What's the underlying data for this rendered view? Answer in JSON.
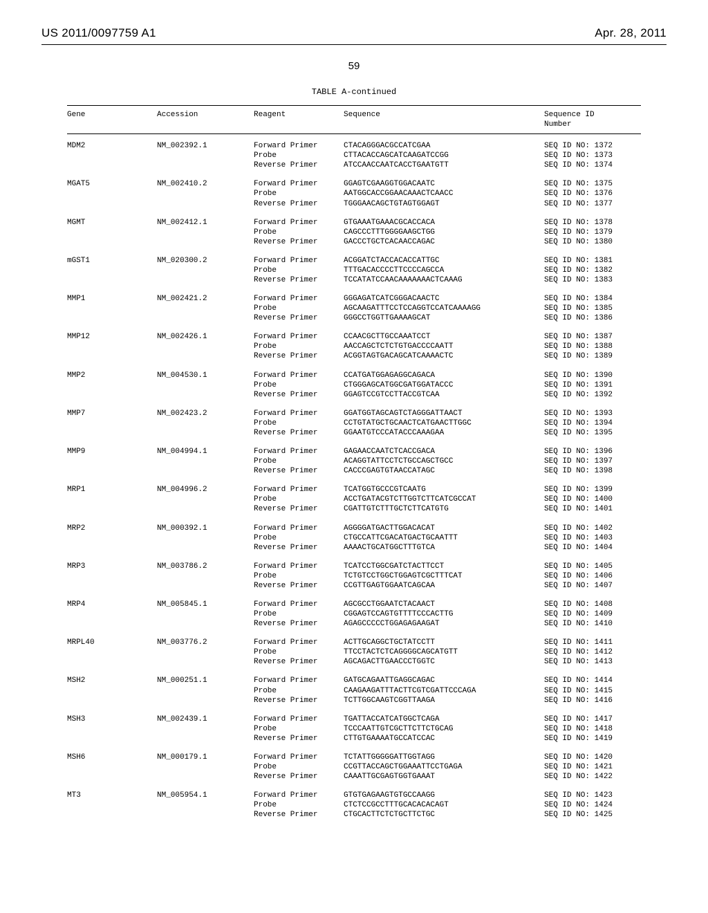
{
  "header": {
    "publication_number": "US 2011/0097759 A1",
    "publication_date": "Apr. 28, 2011"
  },
  "page_number": "59",
  "table_title": "TABLE A-continued",
  "columns": {
    "gene": "Gene",
    "accession": "Accession",
    "reagent": "Reagent",
    "sequence": "Sequence",
    "seq_id_label_1": "Sequence ID",
    "seq_id_label_2": "Number"
  },
  "reagent_labels": {
    "fwd": "Forward Primer",
    "probe": "Probe",
    "rev": "Reverse Primer"
  },
  "seq_id_prefix": "SEQ ID NO:",
  "genes": [
    {
      "gene": "MDM2",
      "accession": "NM_002392.1",
      "fwd_seq": "CTACAGGGACGCCATCGAA",
      "fwd_id": "1372",
      "probe_seq": "CTTACACCAGCATCAAGATCCGG",
      "probe_id": "1373",
      "rev_seq": "ATCCAACCAATCACCTGAATGTT",
      "rev_id": "1374"
    },
    {
      "gene": "MGAT5",
      "accession": "NM_002410.2",
      "fwd_seq": "GGAGTCGAAGGTGGACAATC",
      "fwd_id": "1375",
      "probe_seq": "AATGGCACCGGAACAAACTCAACC",
      "probe_id": "1376",
      "rev_seq": "TGGGAACAGCTGTAGTGGAGT",
      "rev_id": "1377"
    },
    {
      "gene": "MGMT",
      "accession": "NM_002412.1",
      "fwd_seq": "GTGAAATGAAACGCACCACA",
      "fwd_id": "1378",
      "probe_seq": "CAGCCCTTTGGGGAAGCTGG",
      "probe_id": "1379",
      "rev_seq": "GACCCTGCTCACAACCAGAC",
      "rev_id": "1380"
    },
    {
      "gene": "mGST1",
      "accession": "NM_020300.2",
      "fwd_seq": "ACGGATCTACCACACCATTGC",
      "fwd_id": "1381",
      "probe_seq": "TTTGACACCCCTTCCCCAGCCA",
      "probe_id": "1382",
      "rev_seq": "TCCATATCCAACAAAAAAACTCAAAG",
      "rev_id": "1383"
    },
    {
      "gene": "MMP1",
      "accession": "NM_002421.2",
      "fwd_seq": "GGGAGATCATCGGGACAACTC",
      "fwd_id": "1384",
      "probe_seq": "AGCAAGATTTCCTCCAGGTCCATCAAAAGG",
      "probe_id": "1385",
      "rev_seq": "GGGCCTGGTTGAAAAGCAT",
      "rev_id": "1386"
    },
    {
      "gene": "MMP12",
      "accession": "NM_002426.1",
      "fwd_seq": "CCAACGCTTGCCAAATCCT",
      "fwd_id": "1387",
      "probe_seq": "AACCAGCTCTCTGTGACCCCAATT",
      "probe_id": "1388",
      "rev_seq": "ACGGTAGTGACAGCATCAAAACTC",
      "rev_id": "1389"
    },
    {
      "gene": "MMP2",
      "accession": "NM_004530.1",
      "fwd_seq": "CCATGATGGAGAGGCAGACA",
      "fwd_id": "1390",
      "probe_seq": "CTGGGAGCATGGCGATGGATACCC",
      "probe_id": "1391",
      "rev_seq": "GGAGTCCGTCCTTACCGTCAA",
      "rev_id": "1392"
    },
    {
      "gene": "MMP7",
      "accession": "NM_002423.2",
      "fwd_seq": "GGATGGTAGCAGTCTAGGGATTAACT",
      "fwd_id": "1393",
      "probe_seq": "CCTGTATGCTGCAACTCATGAACTTGGC",
      "probe_id": "1394",
      "rev_seq": "GGAATGTCCCATACCCAAAGAA",
      "rev_id": "1395"
    },
    {
      "gene": "MMP9",
      "accession": "NM_004994.1",
      "fwd_seq": "GAGAACCAATCTCACCGACA",
      "fwd_id": "1396",
      "probe_seq": "ACAGGTATTCCTCTGCCAGCTGCC",
      "probe_id": "1397",
      "rev_seq": "CACCCGAGTGTAACCATAGC",
      "rev_id": "1398"
    },
    {
      "gene": "MRP1",
      "accession": "NM_004996.2",
      "fwd_seq": "TCATGGTGCCCGTCAATG",
      "fwd_id": "1399",
      "probe_seq": "ACCTGATACGTCTTGGTCTTCATCGCCAT",
      "probe_id": "1400",
      "rev_seq": "CGATTGTCTTTGCTCTTCATGTG",
      "rev_id": "1401"
    },
    {
      "gene": "MRP2",
      "accession": "NM_000392.1",
      "fwd_seq": "AGGGGATGACTTGGACACAT",
      "fwd_id": "1402",
      "probe_seq": "CTGCCATTCGACATGACTGCAATTT",
      "probe_id": "1403",
      "rev_seq": "AAAACTGCATGGCTTTGTCA",
      "rev_id": "1404"
    },
    {
      "gene": "MRP3",
      "accession": "NM_003786.2",
      "fwd_seq": "TCATCCTGGCGATCTACTTCCT",
      "fwd_id": "1405",
      "probe_seq": "TCTGTCCTGGCTGGAGTCGCTTTCAT",
      "probe_id": "1406",
      "rev_seq": "CCGTTGAGTGGAATCAGCAA",
      "rev_id": "1407"
    },
    {
      "gene": "MRP4",
      "accession": "NM_005845.1",
      "fwd_seq": "AGCGCCTGGAATCTACAACT",
      "fwd_id": "1408",
      "probe_seq": "CGGAGTCCAGTGTTTTCCCACTTG",
      "probe_id": "1409",
      "rev_seq": "AGAGCCCCCTGGAGAGAAGAT",
      "rev_id": "1410"
    },
    {
      "gene": "MRPL40",
      "accession": "NM_003776.2",
      "fwd_seq": "ACTTGCAGGCTGCTATCCTT",
      "fwd_id": "1411",
      "probe_seq": "TTCCTACTCTCAGGGGCAGCATGTT",
      "probe_id": "1412",
      "rev_seq": "AGCAGACTTGAACCCTGGTC",
      "rev_id": "1413"
    },
    {
      "gene": "MSH2",
      "accession": "NM_000251.1",
      "fwd_seq": "GATGCAGAATTGAGGCAGAC",
      "fwd_id": "1414",
      "probe_seq": "CAAGAAGATTTACTTCGTCGATTCCCAGA",
      "probe_id": "1415",
      "rev_seq": "TCTTGGCAAGTCGGTTAAGA",
      "rev_id": "1416"
    },
    {
      "gene": "MSH3",
      "accession": "NM_002439.1",
      "fwd_seq": "TGATTACCATCATGGCTCAGA",
      "fwd_id": "1417",
      "probe_seq": "TCCCAATTGTCGCTTCTTCTGCAG",
      "probe_id": "1418",
      "rev_seq": "CTTGTGAAAATGCCATCCAC",
      "rev_id": "1419"
    },
    {
      "gene": "MSH6",
      "accession": "NM_000179.1",
      "fwd_seq": "TCTATTGGGGGATTGGTAGG",
      "fwd_id": "1420",
      "probe_seq": "CCGTTACCAGCTGGAAATTCCTGAGA",
      "probe_id": "1421",
      "rev_seq": "CAAATTGCGAGTGGTGAAAT",
      "rev_id": "1422"
    },
    {
      "gene": "MT3",
      "accession": "NM_005954.1",
      "fwd_seq": "GTGTGAGAAGTGTGCCAAGG",
      "fwd_id": "1423",
      "probe_seq": "CTCTCCGCCTTTGCACACACAGT",
      "probe_id": "1424",
      "rev_seq": "CTGCACTTCTCTGCTTCTGC",
      "rev_id": "1425"
    }
  ]
}
